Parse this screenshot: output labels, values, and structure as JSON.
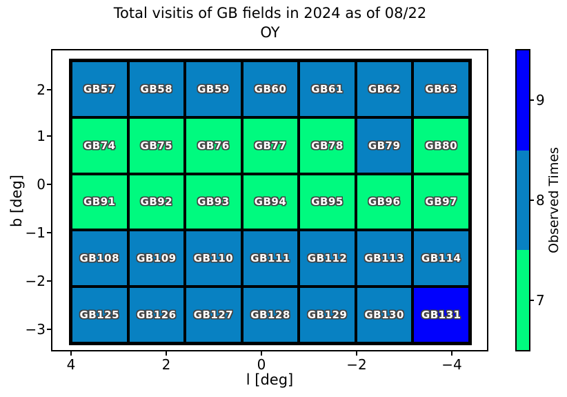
{
  "title": {
    "line1": "Total visitis of GB fields in 2024 as of 08/22",
    "line2": "OY"
  },
  "axes": {
    "xlabel": "l [deg]",
    "ylabel": "b [deg]",
    "x_tick_labels": [
      "4",
      "2",
      "0",
      "−2",
      "−4"
    ],
    "y_tick_labels": [
      "2",
      "1",
      "0",
      "−1",
      "−2",
      "−3"
    ]
  },
  "colorbar": {
    "label": "Observed Times",
    "segments": [
      {
        "label": "9",
        "value": 9,
        "color": "#0101FD"
      },
      {
        "label": "8",
        "value": 8,
        "color": "#0881C2"
      },
      {
        "label": "7",
        "value": 7,
        "color": "#00FA7F"
      }
    ]
  },
  "chart_data": {
    "type": "heatmap",
    "title": "Total visitis of GB fields in 2024 as of 08/22 OY",
    "xlabel": "l [deg]",
    "ylabel": "b [deg]",
    "x_tick_values": [
      4,
      2,
      0,
      -2,
      -4
    ],
    "y_tick_values": [
      2,
      1,
      0,
      -1,
      -2,
      -3
    ],
    "x_axis_reversed": true,
    "l_extent": [
      4.05,
      -4.4
    ],
    "b_extent": [
      2.65,
      -3.35
    ],
    "colorbar_label": "Observed Times",
    "value_colors": {
      "7": "#00FA7F",
      "8": "#0881C2",
      "9": "#0101FD"
    },
    "rows": [
      {
        "fields": [
          "GB57",
          "GB58",
          "GB59",
          "GB60",
          "GB61",
          "GB62",
          "GB63"
        ],
        "values": [
          8,
          8,
          8,
          8,
          8,
          8,
          8
        ]
      },
      {
        "fields": [
          "GB74",
          "GB75",
          "GB76",
          "GB77",
          "GB78",
          "GB79",
          "GB80"
        ],
        "values": [
          7,
          7,
          7,
          7,
          7,
          8,
          7
        ]
      },
      {
        "fields": [
          "GB91",
          "GB92",
          "GB93",
          "GB94",
          "GB95",
          "GB96",
          "GB97"
        ],
        "values": [
          7,
          7,
          7,
          7,
          7,
          7,
          7
        ]
      },
      {
        "fields": [
          "GB108",
          "GB109",
          "GB110",
          "GB111",
          "GB112",
          "GB113",
          "GB114"
        ],
        "values": [
          8,
          8,
          8,
          8,
          8,
          8,
          8
        ]
      },
      {
        "fields": [
          "GB125",
          "GB126",
          "GB127",
          "GB128",
          "GB129",
          "GB130",
          "GB131"
        ],
        "values": [
          8,
          8,
          8,
          8,
          8,
          8,
          9
        ]
      }
    ]
  }
}
